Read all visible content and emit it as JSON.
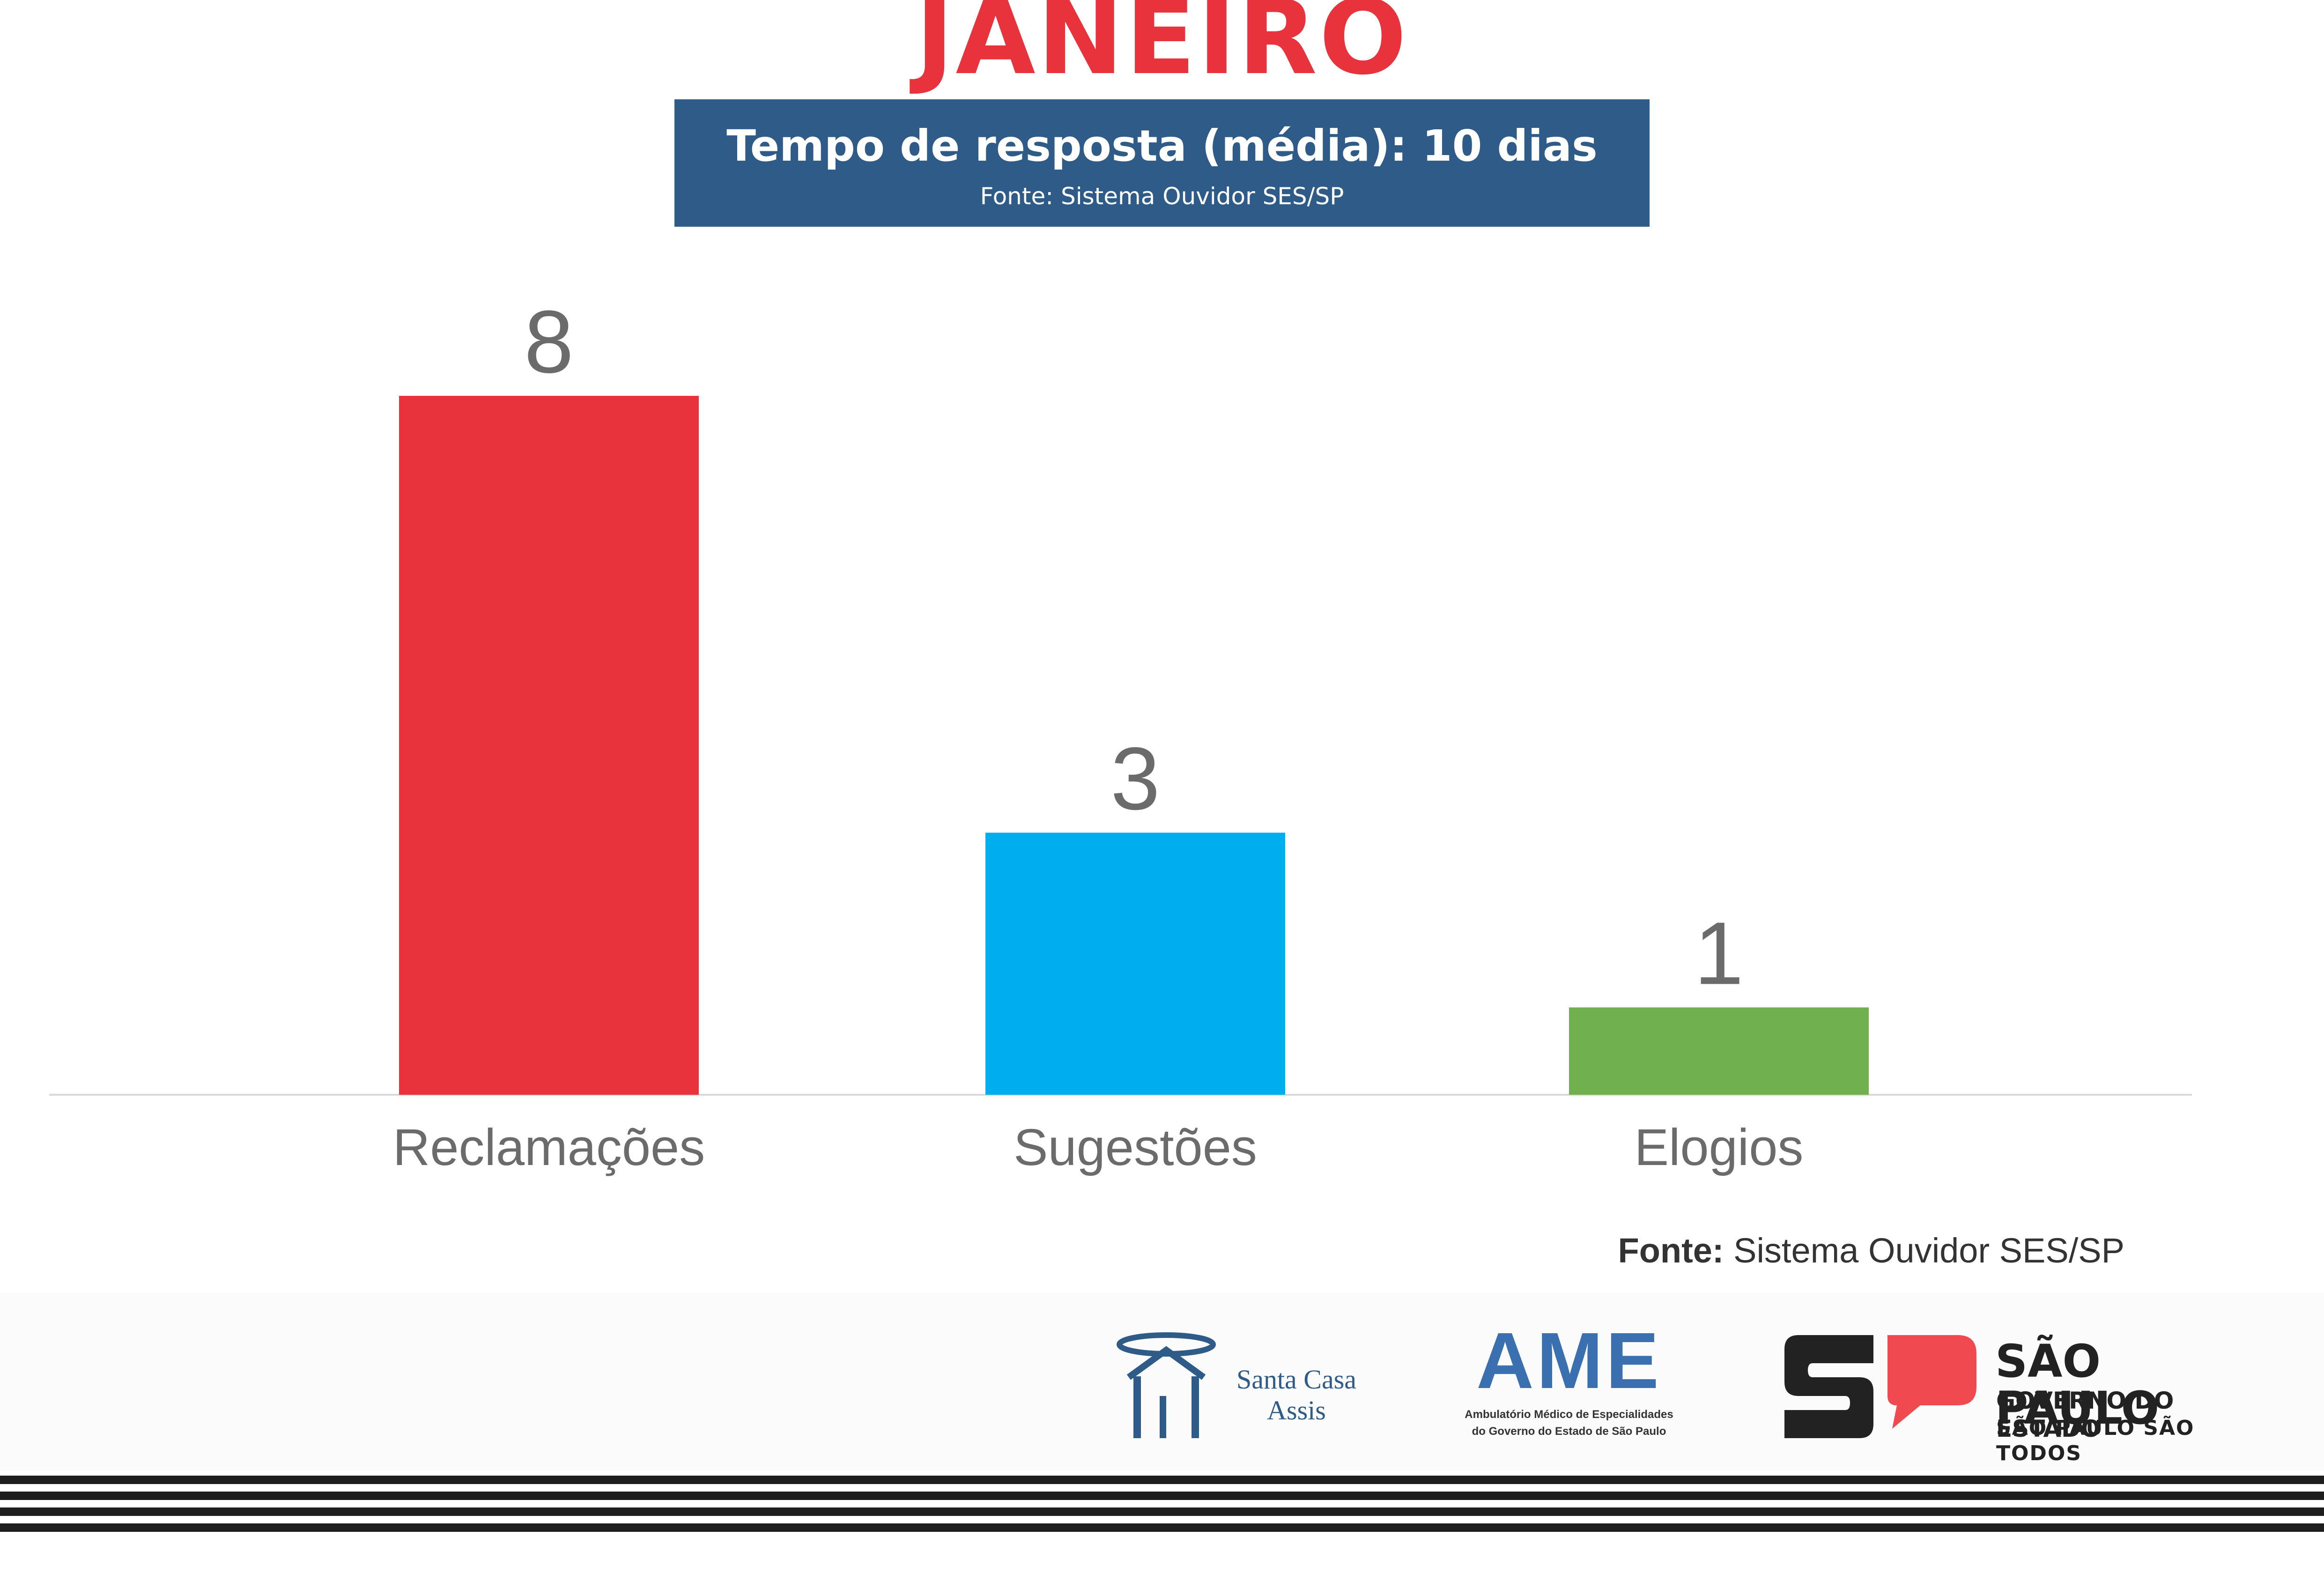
{
  "header": {
    "month": "JANEIRO",
    "headline": "Tempo de resposta (média): 10 dias",
    "source": "Fonte: Sistema Ouvidor SES/SP"
  },
  "chart_data": {
    "type": "bar",
    "categories": [
      "Reclamações",
      "Sugestões",
      "Elogios"
    ],
    "values": [
      8,
      3,
      1
    ],
    "data_labels": [
      "8",
      "3",
      "1"
    ],
    "colors": [
      "#e8323c",
      "#00aeef",
      "#70b04e"
    ],
    "ylim": [
      0,
      8.6
    ],
    "grid": false,
    "legend": "none",
    "xlabel": "",
    "ylabel": ""
  },
  "footer": {
    "source_bold": "Fonte:",
    "source_text": " Sistema Ouvidor SES/SP"
  },
  "logos": {
    "santa_casa": {
      "line1": "Santa Casa",
      "line2": "Assis",
      "color": "#2e5b88"
    },
    "ame": {
      "mark": "AME",
      "sub1": "Ambulatório Médico de Especialidades",
      "sub2": "do Governo do Estado de São Paulo",
      "color": "#3a6fb0"
    },
    "sp": {
      "line1": "SÃO PAULO",
      "line2": "GOVERNO DO ESTADO",
      "line3": "SÃO PAULO SÃO TODOS",
      "accent": "#f04a50",
      "dark": "#222222"
    }
  }
}
